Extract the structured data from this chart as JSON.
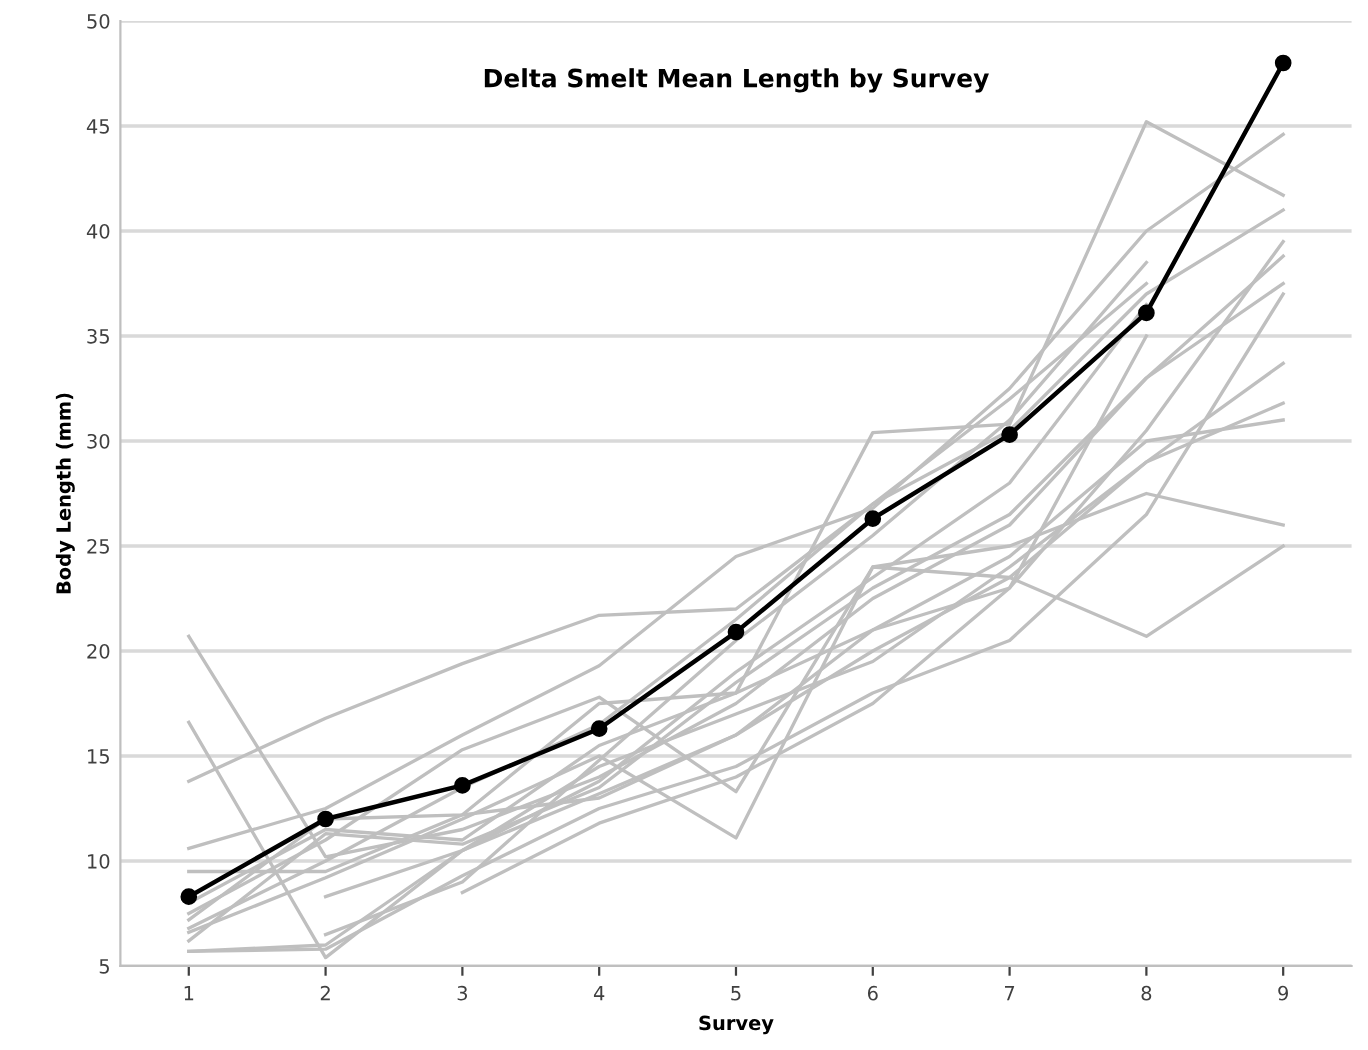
{
  "chart_data": {
    "type": "line",
    "title": "Delta Smelt Mean Length by Survey",
    "xlabel": "Survey",
    "ylabel": "Body Length (mm)",
    "x": [
      1,
      2,
      3,
      4,
      5,
      6,
      7,
      8,
      9
    ],
    "xlim": [
      0.5,
      9.5
    ],
    "xticks": [
      1,
      2,
      3,
      4,
      5,
      6,
      7,
      8,
      9
    ],
    "ylim": [
      5,
      50
    ],
    "yticks": [
      5,
      10,
      15,
      20,
      25,
      30,
      35,
      40,
      45,
      50
    ],
    "grid": "y",
    "legend": false,
    "line_style": "solid",
    "series": [
      {
        "color": "#bfbfbf",
        "marker": "none",
        "values": [
          20.7,
          10.2,
          11.5,
          14.0,
          17.5,
          22.5,
          26.0,
          33.0,
          38.8
        ]
      },
      {
        "color": "#bfbfbf",
        "marker": "none",
        "values": [
          16.6,
          5.4,
          10.5,
          13.2,
          16.0,
          20.0,
          23.5,
          29.0,
          33.7
        ]
      },
      {
        "color": "#bfbfbf",
        "marker": "none",
        "values": [
          13.8,
          16.8,
          19.4,
          21.7,
          22.0,
          27.0,
          30.5,
          37.0,
          41.0
        ]
      },
      {
        "color": "#bfbfbf",
        "marker": "none",
        "values": [
          10.6,
          12.5,
          16.0,
          19.3,
          24.5,
          26.8,
          32.5,
          40.0,
          44.6
        ]
      },
      {
        "color": "#bfbfbf",
        "marker": "none",
        "values": [
          9.5,
          9.5,
          12.2,
          17.5,
          18.0,
          30.4,
          30.8,
          45.2,
          41.7
        ]
      },
      {
        "color": "#bfbfbf",
        "marker": "none",
        "values": [
          7.5,
          11.0,
          15.3,
          17.8,
          13.3,
          24.0,
          25.0,
          27.5,
          26.0
        ]
      },
      {
        "color": "#bfbfbf",
        "marker": "none",
        "values": [
          6.6,
          9.2,
          12.0,
          15.0,
          11.1,
          24.0,
          23.5,
          20.7,
          25.0
        ]
      },
      {
        "color": "#bfbfbf",
        "marker": "none",
        "values": [
          6.2,
          11.3,
          10.8,
          13.5,
          18.5,
          23.0,
          26.5,
          33.0,
          37.5
        ]
      },
      {
        "color": "#bfbfbf",
        "marker": "none",
        "values": [
          5.7,
          6.0,
          10.5,
          14.5,
          17.0,
          19.5,
          24.0,
          29.0,
          31.8
        ]
      },
      {
        "color": "#bfbfbf",
        "marker": "none",
        "values": [
          5.7,
          5.8,
          9.3,
          12.5,
          14.5,
          18.0,
          20.5,
          26.5,
          37.0
        ]
      },
      {
        "color": "#bfbfbf",
        "marker": "none",
        "values": [
          7.2,
          12.0,
          12.2,
          13.0,
          16.0,
          21.0,
          24.5,
          30.0,
          31.0
        ]
      },
      {
        "color": "#bfbfbf",
        "marker": "none",
        "values": [
          null,
          8.3,
          10.5,
          13.8,
          19.0,
          23.5,
          28.0,
          36.5,
          null
        ]
      },
      {
        "color": "#bfbfbf",
        "marker": "none",
        "values": [
          null,
          6.5,
          9.0,
          14.8,
          20.5,
          25.5,
          31.0,
          38.5,
          null
        ]
      },
      {
        "color": "#bfbfbf",
        "marker": "none",
        "values": [
          null,
          null,
          8.5,
          11.8,
          14.0,
          17.5,
          23.0,
          35.0,
          null
        ]
      },
      {
        "color": "#bfbfbf",
        "marker": "none",
        "values": [
          6.8,
          10.0,
          13.5,
          16.5,
          21.5,
          27.0,
          32.0,
          37.5,
          null
        ]
      },
      {
        "color": "#bfbfbf",
        "marker": "none",
        "values": [
          8.0,
          11.5,
          11.0,
          15.5,
          18.0,
          21.0,
          23.0,
          30.5,
          39.5
        ]
      },
      {
        "color": "#000000",
        "marker": "circle",
        "values": [
          8.3,
          12.0,
          13.6,
          16.3,
          20.9,
          26.3,
          30.3,
          36.1,
          48.0
        ]
      }
    ]
  }
}
